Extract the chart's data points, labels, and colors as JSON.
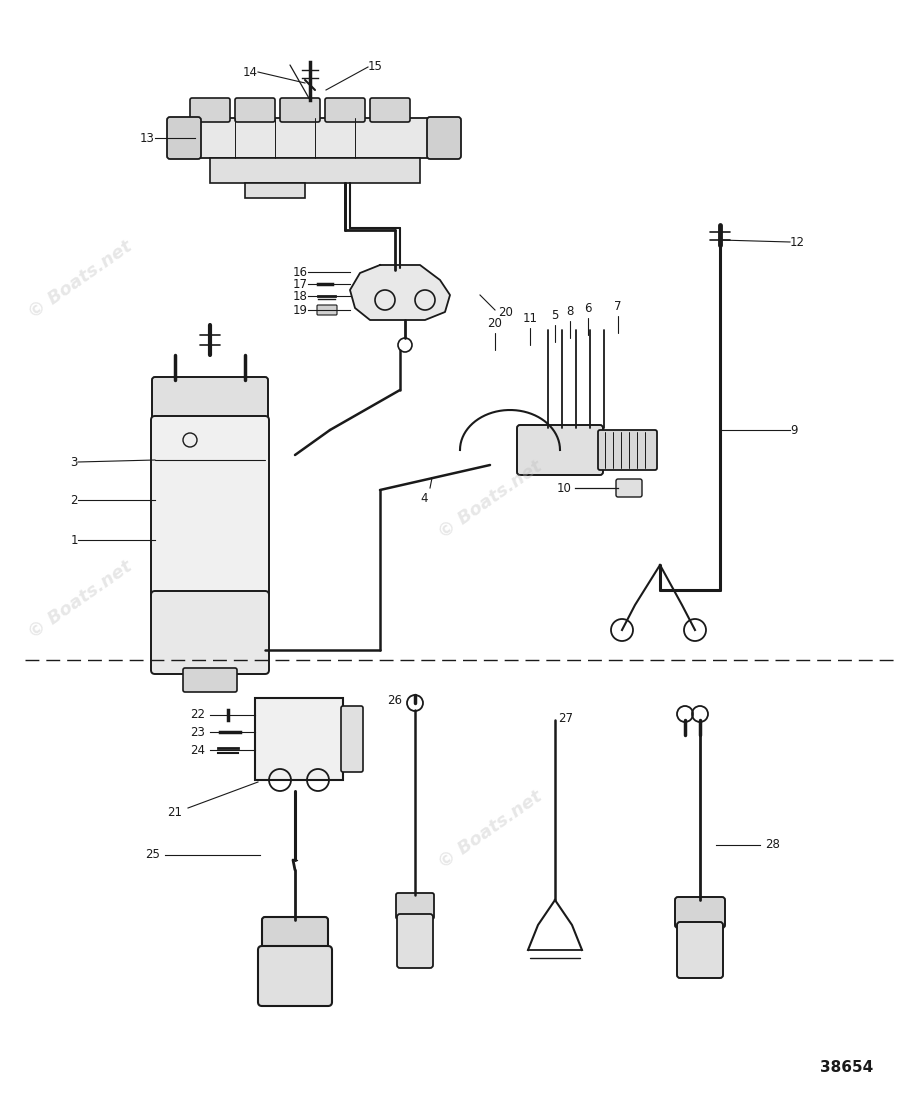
{
  "background_color": "#ffffff",
  "line_color": "#1a1a1a",
  "watermark_color": "#bbbbbb",
  "part_number": "38654",
  "watermark_text": "© Boats.net",
  "fig_width": 9.24,
  "fig_height": 11.04,
  "dpi": 100
}
